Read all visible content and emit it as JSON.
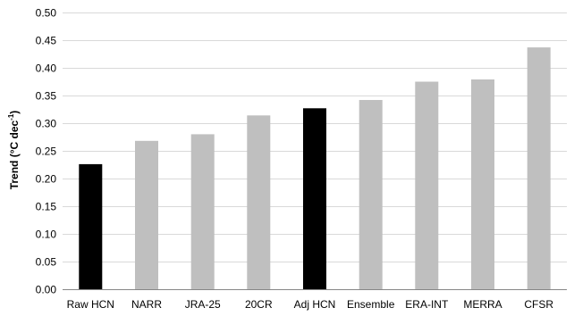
{
  "chart_data": {
    "type": "bar",
    "title": "",
    "xlabel": "",
    "ylabel": "Trend (°C dec",
    "ylabel_sup": "-1",
    "ylabel_close": ")",
    "ylim": [
      0,
      0.5
    ],
    "yticks": [
      0.0,
      0.05,
      0.1,
      0.15,
      0.2,
      0.25,
      0.3,
      0.35,
      0.4,
      0.45,
      0.5
    ],
    "ytick_labels": [
      "0.00",
      "0.05",
      "0.10",
      "0.15",
      "0.20",
      "0.25",
      "0.30",
      "0.35",
      "0.40",
      "0.45",
      "0.50"
    ],
    "grid": true,
    "legend": "none",
    "categories": [
      "Raw HCN",
      "NARR",
      "JRA-25",
      "20CR",
      "Adj HCN",
      "Ensemble",
      "ERA-INT",
      "MERRA",
      "CFSR"
    ],
    "values": [
      0.226,
      0.268,
      0.28,
      0.314,
      0.327,
      0.342,
      0.375,
      0.379,
      0.437
    ],
    "bar_colors": [
      "#000000",
      "#bfbfbf",
      "#bfbfbf",
      "#bfbfbf",
      "#000000",
      "#bfbfbf",
      "#bfbfbf",
      "#bfbfbf",
      "#bfbfbf"
    ]
  }
}
